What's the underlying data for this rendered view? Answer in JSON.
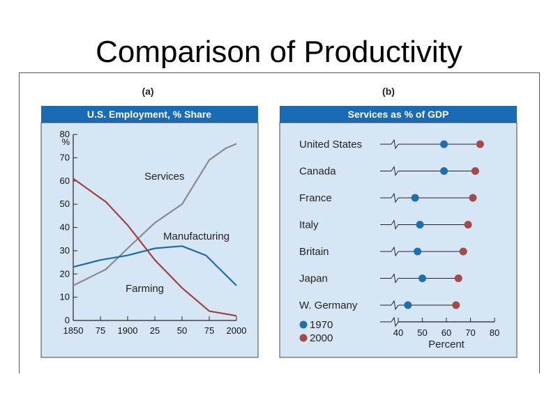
{
  "slide": {
    "title": "Comparison of Productivity"
  },
  "colors": {
    "panel_background": "#d6e6f5",
    "header_background": "#1a6bb5",
    "services_line": "#8a8a8a",
    "manufacturing_line": "#1a6bb5",
    "farming_line": "#a04040",
    "marker_1970": "#1f6fae",
    "marker_2000": "#a34a4a"
  },
  "chart_data": [
    {
      "type": "line",
      "panel_label": "(a)",
      "title": "U.S. Employment, % Share",
      "xlabel": "",
      "ylabel": "%",
      "xlim": [
        1850,
        2000
      ],
      "ylim": [
        0,
        80
      ],
      "x_tick_values": [
        1850,
        1875,
        1900,
        1925,
        1950,
        1975,
        2000
      ],
      "x_tick_labels": [
        "1850",
        "75",
        "1900",
        "25",
        "50",
        "75",
        "2000"
      ],
      "y_ticks": [
        0,
        10,
        20,
        30,
        40,
        50,
        60,
        70,
        80
      ],
      "grid": false,
      "series": [
        {
          "name": "Services",
          "x": [
            1850,
            1880,
            1900,
            1925,
            1950,
            1975,
            1990,
            2000
          ],
          "values": [
            15,
            22,
            31,
            42,
            50,
            69,
            74,
            76
          ]
        },
        {
          "name": "Manufacturing",
          "x": [
            1850,
            1875,
            1900,
            1925,
            1950,
            1972,
            2000
          ],
          "values": [
            23,
            26,
            28,
            31,
            32,
            28,
            15
          ]
        },
        {
          "name": "Farming",
          "x": [
            1850,
            1880,
            1900,
            1925,
            1950,
            1975,
            2000
          ],
          "values": [
            61,
            51,
            41,
            26,
            14,
            4,
            2
          ]
        }
      ]
    },
    {
      "type": "scatter",
      "panel_label": "(b)",
      "title": "Services as % of GDP",
      "xlabel": "Percent",
      "xlim": [
        40,
        80
      ],
      "x_ticks": [
        40,
        50,
        60,
        70,
        80
      ],
      "categories": [
        "United States",
        "Canada",
        "France",
        "Italy",
        "Britain",
        "Japan",
        "W. Germany"
      ],
      "series": [
        {
          "name": "1970",
          "values": [
            59,
            59,
            47,
            49,
            48,
            50,
            44
          ]
        },
        {
          "name": "2000",
          "values": [
            74,
            72,
            71,
            69,
            67,
            65,
            64
          ]
        }
      ],
      "legend_position": "bottom-left"
    }
  ]
}
